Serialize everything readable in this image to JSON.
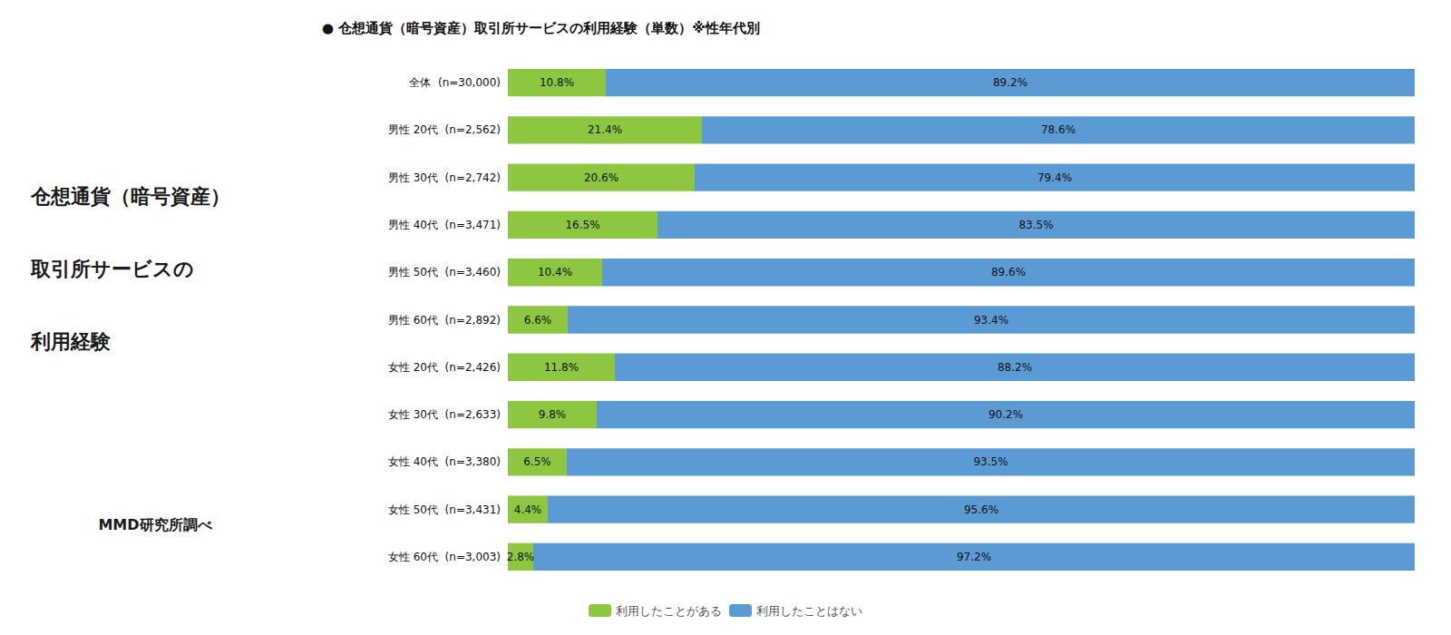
{
  "chart_data": {
    "type": "bar",
    "orientation": "horizontal",
    "stacked": true,
    "title": "● 仓想通貨（暗号資産）取引所サービスの利用経験（単数）※性年代別",
    "subtitle": "MMD研究所調べ",
    "annotations": [
      "仓想通貨（暗号資産）",
      "取引所サービスの",
      "利用経験"
    ],
    "categories": [
      "全体  (n=30,000)",
      "男性 20代  (n=2,562)",
      "男性 30代  (n=2,742)",
      "男性 40代  (n=3,471)",
      "男性 50代  (n=3,460)",
      "男性 60代  (n=2,892)",
      "女性 20代  (n=2,426)",
      "女性 30代  (n=2,633)",
      "女性 40代  (n=3,380)",
      "女性 50代  (n=3,431)",
      "女性 60代  (n=3,003)"
    ],
    "series": [
      {
        "name": "利用したことがある",
        "color": "#8dc63f",
        "values": [
          10.8,
          21.4,
          20.6,
          16.5,
          10.4,
          6.6,
          11.8,
          9.8,
          6.5,
          4.4,
          2.8
        ],
        "value_labels": [
          "10.8%",
          "21.4%",
          "20.6%",
          "16.5%",
          "10.4%",
          "6.6%",
          "11.8%",
          "9.8%",
          "6.5%",
          "4.4%",
          "2.8%"
        ]
      },
      {
        "name": "利用したことはない",
        "color": "#5b9bd5",
        "values": [
          89.2,
          78.6,
          79.4,
          83.5,
          89.6,
          93.4,
          88.2,
          90.2,
          93.5,
          95.6,
          97.2
        ],
        "value_labels": [
          "89.2%",
          "78.6%",
          "79.4%",
          "83.5%",
          "89.6%",
          "93.4%",
          "88.2%",
          "90.2%",
          "93.5%",
          "95.6%",
          "97.2%"
        ]
      }
    ],
    "xlim": [
      0,
      100
    ],
    "data_labels": true,
    "tick_labels": "y",
    "grid": false,
    "legend": "bottom"
  }
}
